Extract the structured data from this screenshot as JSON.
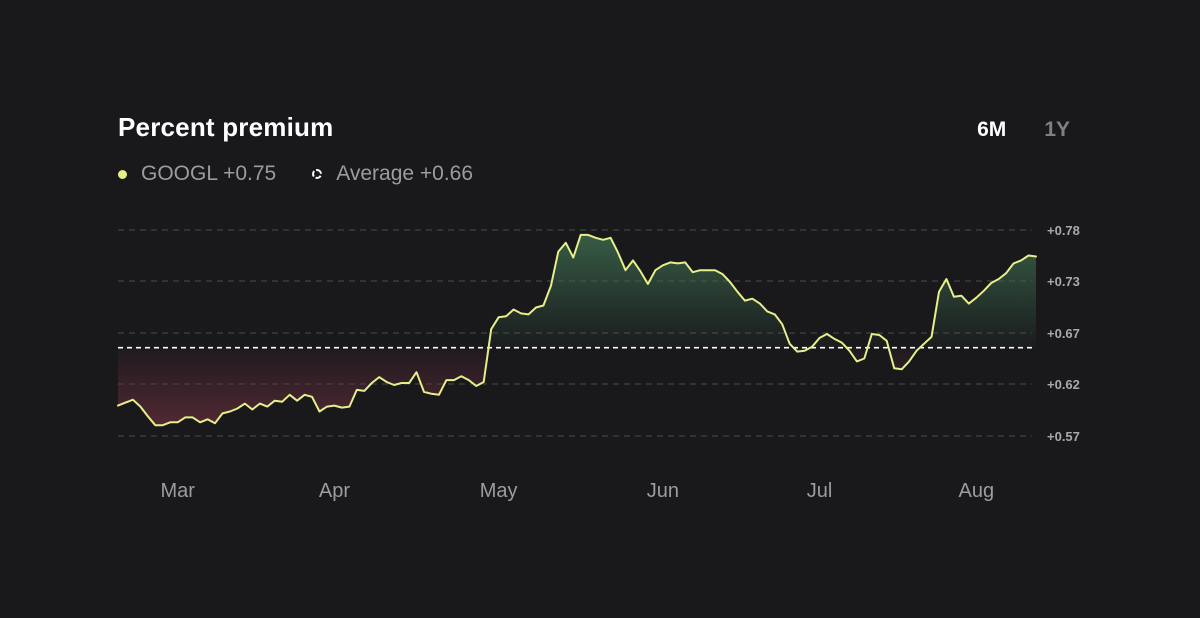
{
  "title": "Percent premium",
  "ranges": [
    {
      "label": "6M",
      "active": true
    },
    {
      "label": "1Y",
      "active": false
    }
  ],
  "legend": {
    "series_label": "GOOGL +0.75",
    "average_label": "Average +0.66"
  },
  "colors": {
    "background": "#19191c",
    "line": "#e6ef8a",
    "above_fill": "#3d6b4e",
    "below_fill": "#6b2f3d",
    "grid": "#4a4b50",
    "average_line": "#ffffff",
    "tick_text": "#a7a9ad"
  },
  "chart_data": {
    "type": "area",
    "title": "Percent premium",
    "series": [
      {
        "name": "GOOGL",
        "values": [
          0.601,
          0.604,
          0.607,
          0.6,
          0.59,
          0.581,
          0.581,
          0.584,
          0.584,
          0.589,
          0.589,
          0.584,
          0.587,
          0.583,
          0.593,
          0.595,
          0.598,
          0.603,
          0.597,
          0.603,
          0.6,
          0.606,
          0.605,
          0.612,
          0.606,
          0.612,
          0.61,
          0.595,
          0.6,
          0.601,
          0.599,
          0.6,
          0.617,
          0.616,
          0.624,
          0.63,
          0.625,
          0.622,
          0.624,
          0.624,
          0.635,
          0.615,
          0.613,
          0.612,
          0.627,
          0.627,
          0.631,
          0.627,
          0.621,
          0.625,
          0.679,
          0.691,
          0.692,
          0.699,
          0.695,
          0.694,
          0.701,
          0.703,
          0.723,
          0.758,
          0.767,
          0.752,
          0.775,
          0.775,
          0.772,
          0.77,
          0.772,
          0.757,
          0.739,
          0.749,
          0.738,
          0.725,
          0.739,
          0.744,
          0.747,
          0.746,
          0.747,
          0.737,
          0.739,
          0.739,
          0.739,
          0.735,
          0.727,
          0.717,
          0.708,
          0.71,
          0.705,
          0.697,
          0.694,
          0.684,
          0.664,
          0.656,
          0.657,
          0.661,
          0.67,
          0.674,
          0.669,
          0.665,
          0.657,
          0.646,
          0.649,
          0.674,
          0.673,
          0.667,
          0.639,
          0.638,
          0.646,
          0.657,
          0.664,
          0.671,
          0.717,
          0.73,
          0.712,
          0.713,
          0.705,
          0.711,
          0.718,
          0.726,
          0.73,
          0.736,
          0.746,
          0.749,
          0.754,
          0.753
        ]
      }
    ],
    "average": 0.66,
    "yticks": [
      0.57,
      0.62,
      0.67,
      0.73,
      0.78
    ],
    "ytick_labels": [
      "+0.57",
      "+0.62",
      "+0.67",
      "+0.73",
      "+0.78"
    ],
    "xticks": [
      {
        "label": "Mar",
        "index": 8
      },
      {
        "label": "Apr",
        "index": 29
      },
      {
        "label": "May",
        "index": 51
      },
      {
        "label": "Jun",
        "index": 73
      },
      {
        "label": "Jul",
        "index": 94
      },
      {
        "label": "Aug",
        "index": 115
      }
    ],
    "ylim": [
      0.57,
      0.78
    ],
    "grid": true,
    "legend_position": "top-left"
  }
}
